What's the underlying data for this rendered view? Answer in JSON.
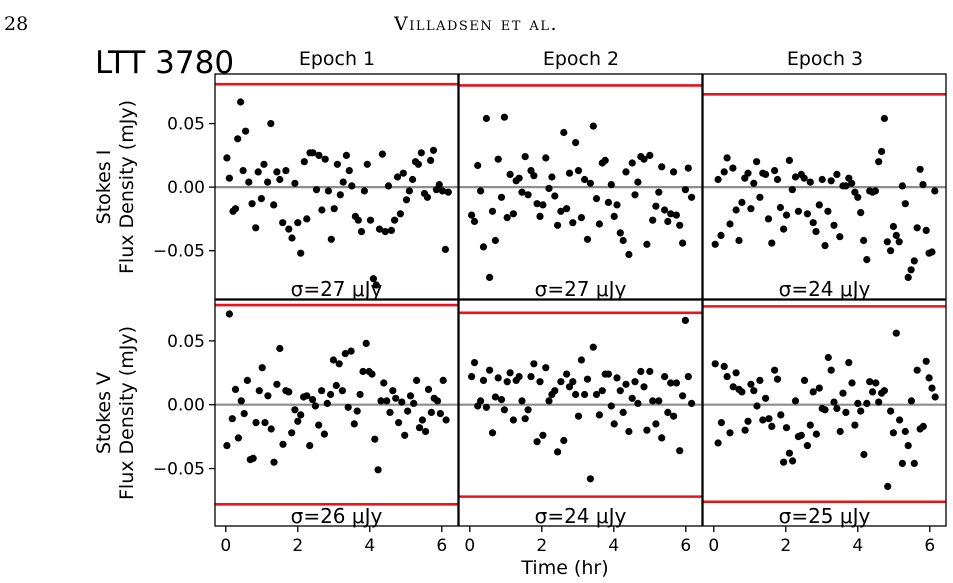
{
  "page": {
    "number": "28",
    "header": "Villadsen et al."
  },
  "figure": {
    "target": "LTT 3780",
    "epochs": [
      "Epoch 1",
      "Epoch 2",
      "Epoch 3"
    ],
    "row_labels": [
      [
        "Stokes I",
        "Flux Density (mJy)"
      ],
      [
        "Stokes V",
        "Flux Density (mJy)"
      ]
    ],
    "xlabel": "Time (hr)",
    "y_tick_labels": [
      "0.05",
      "0.00",
      "−0.05"
    ],
    "x_tick_labels": [
      "0",
      "2",
      "4",
      "6"
    ]
  },
  "colors": {
    "points": "#000000",
    "threshold": "#e8141c",
    "zero_line": "#8c8c8c"
  },
  "chart_data": [
    {
      "type": "scatter",
      "row": "Stokes I",
      "epoch": "Epoch 1",
      "sigma_label": "σ=27 μJy",
      "xlim": [
        -0.3,
        6.45
      ],
      "ylim": [
        -0.088,
        0.089
      ],
      "threshold_lines": [
        0.081
      ],
      "x": [
        0.03,
        0.1,
        0.2,
        0.27,
        0.33,
        0.41,
        0.48,
        0.55,
        0.64,
        0.73,
        0.83,
        0.9,
        0.99,
        1.06,
        1.16,
        1.25,
        1.33,
        1.42,
        1.5,
        1.58,
        1.67,
        1.75,
        1.84,
        1.92,
        2.0,
        2.08,
        2.18,
        2.25,
        2.34,
        2.42,
        2.52,
        2.59,
        2.67,
        2.76,
        2.85,
        2.93,
        3.01,
        3.1,
        3.18,
        3.26,
        3.35,
        3.43,
        3.5,
        3.6,
        3.68,
        3.77,
        3.85,
        3.93,
        4.02,
        4.1,
        4.18,
        4.27,
        4.35,
        4.43,
        4.52,
        4.6,
        4.69,
        4.77,
        4.85,
        4.93,
        5.02,
        5.1,
        5.19,
        5.27,
        5.35,
        5.43,
        5.52,
        5.6,
        5.69,
        5.77,
        5.85,
        5.93,
        6.02,
        6.1,
        6.18
      ],
      "y": [
        0.023,
        0.007,
        -0.019,
        -0.017,
        0.038,
        0.067,
        0.013,
        0.044,
        0.004,
        -0.013,
        -0.032,
        0.012,
        -0.009,
        0.018,
        0.004,
        0.05,
        -0.014,
        0.012,
        0.006,
        -0.028,
        0.013,
        -0.033,
        -0.04,
        0.003,
        -0.028,
        -0.052,
        0.02,
        -0.025,
        0.027,
        0.027,
        -0.002,
        0.025,
        -0.018,
        0.022,
        -0.003,
        -0.041,
        -0.017,
        0.018,
        -0.006,
        0.004,
        0.025,
        0.013,
        0.001,
        -0.023,
        -0.026,
        -0.035,
        -0.003,
        0.018,
        -0.026,
        -0.072,
        -0.077,
        -0.033,
        0.026,
        -0.035,
        0.001,
        -0.034,
        -0.026,
        0.008,
        -0.021,
        0.011,
        -0.01,
        -0.003,
        0.006,
        0.02,
        0.018,
        0.027,
        -0.005,
        -0.008,
        0.021,
        0.029,
        -0.002,
        0.002,
        -0.003,
        -0.049,
        -0.004
      ]
    },
    {
      "type": "scatter",
      "row": "Stokes I",
      "epoch": "Epoch 2",
      "sigma_label": "σ=27 μJy",
      "xlim": [
        -0.3,
        6.45
      ],
      "ylim": [
        -0.088,
        0.089
      ],
      "threshold_lines": [
        0.08
      ],
      "x": [
        0.05,
        0.13,
        0.22,
        0.3,
        0.38,
        0.46,
        0.55,
        0.63,
        0.71,
        0.79,
        0.88,
        0.96,
        1.04,
        1.12,
        1.21,
        1.29,
        1.37,
        1.45,
        1.54,
        1.62,
        1.7,
        1.78,
        1.87,
        1.95,
        2.03,
        2.11,
        2.2,
        2.28,
        2.36,
        2.44,
        2.53,
        2.61,
        2.69,
        2.77,
        2.86,
        2.94,
        3.02,
        3.1,
        3.19,
        3.27,
        3.35,
        3.43,
        3.52,
        3.6,
        3.68,
        3.76,
        3.85,
        3.93,
        4.01,
        4.09,
        4.18,
        4.26,
        4.34,
        4.42,
        4.51,
        4.59,
        4.67,
        4.75,
        4.84,
        4.92,
        5.0,
        5.08,
        5.17,
        5.25,
        5.33,
        5.41,
        5.5,
        5.58,
        5.66,
        5.74,
        5.83,
        5.91,
        5.99,
        6.07,
        6.16
      ],
      "y": [
        -0.022,
        -0.027,
        0.017,
        -0.003,
        -0.047,
        0.054,
        -0.071,
        -0.019,
        -0.042,
        0.022,
        -0.008,
        0.055,
        -0.024,
        0.01,
        -0.021,
        0.005,
        0.007,
        -0.004,
        0.024,
        -0.006,
        0.013,
        0.009,
        -0.013,
        -0.023,
        -0.014,
        0.023,
        -0.001,
        0.008,
        -0.007,
        -0.03,
        -0.019,
        0.043,
        -0.017,
        0.011,
        -0.028,
        0.035,
        0.013,
        -0.024,
        0.006,
        -0.041,
        0.003,
        0.048,
        -0.009,
        -0.029,
        0.019,
        0.021,
        -0.012,
        0.002,
        -0.023,
        -0.014,
        -0.036,
        -0.042,
        0.012,
        -0.053,
        0.019,
        -0.006,
        0.004,
        0.024,
        0.022,
        -0.045,
        0.025,
        -0.026,
        -0.015,
        -0.004,
        0.016,
        -0.018,
        -0.027,
        -0.021,
        0.012,
        -0.022,
        -0.03,
        -0.044,
        -0.002,
        0.015,
        -0.008
      ]
    },
    {
      "type": "scatter",
      "row": "Stokes I",
      "epoch": "Epoch 3",
      "sigma_label": "σ=24 μJy",
      "xlim": [
        -0.3,
        6.45
      ],
      "ylim": [
        -0.088,
        0.089
      ],
      "threshold_lines": [
        0.073
      ],
      "x": [
        0.04,
        0.12,
        0.2,
        0.29,
        0.37,
        0.45,
        0.53,
        0.62,
        0.7,
        0.78,
        0.86,
        0.95,
        1.03,
        1.11,
        1.19,
        1.28,
        1.36,
        1.44,
        1.52,
        1.61,
        1.69,
        1.77,
        1.85,
        1.94,
        2.02,
        2.1,
        2.18,
        2.27,
        2.35,
        2.43,
        2.51,
        2.6,
        2.68,
        2.76,
        2.84,
        2.93,
        3.01,
        3.09,
        3.17,
        3.26,
        3.34,
        3.42,
        3.5,
        3.59,
        3.67,
        3.75,
        3.83,
        3.92,
        4.0,
        4.08,
        4.16,
        4.25,
        4.33,
        4.41,
        4.49,
        4.58,
        4.66,
        4.74,
        4.82,
        4.91,
        4.99,
        5.07,
        5.15,
        5.24,
        5.32,
        5.4,
        5.48,
        5.57,
        5.65,
        5.73,
        5.81,
        5.9,
        5.98,
        6.06,
        6.14
      ],
      "y": [
        -0.045,
        0.006,
        -0.038,
        0.012,
        0.023,
        -0.029,
        0.015,
        -0.018,
        -0.042,
        -0.012,
        0.007,
        0.011,
        -0.017,
        0.003,
        0.02,
        -0.008,
        0.011,
        0.01,
        -0.025,
        -0.044,
        0.013,
        0.006,
        -0.016,
        -0.033,
        -0.022,
        0.021,
        -0.002,
        0.008,
        -0.019,
        0.01,
        0.007,
        -0.021,
        0.004,
        -0.028,
        -0.035,
        -0.014,
        0.006,
        -0.046,
        -0.019,
        0.005,
        -0.03,
        0.01,
        -0.039,
        0.001,
        0.001,
        0.007,
        0.003,
        -0.004,
        -0.008,
        -0.02,
        -0.042,
        -0.057,
        -0.003,
        -0.004,
        -0.003,
        0.02,
        0.028,
        0.054,
        -0.043,
        -0.05,
        -0.031,
        -0.038,
        -0.043,
        0.001,
        -0.013,
        -0.071,
        -0.065,
        -0.058,
        -0.032,
        0.014,
        0.002,
        -0.034,
        -0.052,
        -0.051,
        -0.003
      ]
    },
    {
      "type": "scatter",
      "row": "Stokes V",
      "epoch": "Epoch 1",
      "sigma_label": "σ=26 μJy",
      "xlim": [
        -0.3,
        6.45
      ],
      "ylim": [
        -0.095,
        0.082
      ],
      "threshold_lines": [
        0.078,
        -0.078
      ],
      "x": [
        0.03,
        0.1,
        0.18,
        0.27,
        0.35,
        0.43,
        0.51,
        0.6,
        0.68,
        0.76,
        0.84,
        0.93,
        1.01,
        1.09,
        1.17,
        1.26,
        1.34,
        1.42,
        1.5,
        1.59,
        1.67,
        1.75,
        1.83,
        1.92,
        2.0,
        2.08,
        2.16,
        2.25,
        2.33,
        2.41,
        2.49,
        2.58,
        2.66,
        2.74,
        2.82,
        2.91,
        2.99,
        3.07,
        3.15,
        3.24,
        3.32,
        3.4,
        3.48,
        3.57,
        3.65,
        3.73,
        3.81,
        3.9,
        3.98,
        4.06,
        4.14,
        4.23,
        4.31,
        4.39,
        4.47,
        4.56,
        4.64,
        4.72,
        4.8,
        4.89,
        4.97,
        5.05,
        5.13,
        5.22,
        5.3,
        5.38,
        5.46,
        5.55,
        5.63,
        5.71,
        5.79,
        5.88,
        5.96,
        6.04,
        6.12
      ],
      "y": [
        -0.032,
        0.071,
        -0.011,
        0.012,
        -0.026,
        0.003,
        -0.007,
        0.019,
        -0.043,
        -0.042,
        -0.014,
        0.011,
        0.029,
        -0.014,
        0.007,
        -0.019,
        -0.045,
        0.016,
        0.044,
        -0.031,
        0.011,
        0.01,
        -0.022,
        -0.004,
        -0.013,
        -0.008,
        0.006,
        0.007,
        -0.032,
        0.004,
        -0.001,
        -0.016,
        0.011,
        -0.023,
        0.001,
        0.008,
        0.035,
        0.015,
        0.032,
        0.011,
        0.04,
        -0.002,
        0.042,
        -0.015,
        -0.005,
        0.008,
        0.026,
        0.048,
        0.026,
        0.024,
        -0.027,
        -0.051,
        0.003,
        0.017,
        0.003,
        -0.006,
        0.011,
        0.005,
        -0.014,
        0.002,
        -0.024,
        -0.005,
        0.007,
        0.001,
        0.019,
        -0.018,
        -0.012,
        -0.021,
        0.012,
        -0.006,
        0.005,
        0.003,
        -0.007,
        0.019,
        -0.012
      ]
    },
    {
      "type": "scatter",
      "row": "Stokes V",
      "epoch": "Epoch 2",
      "sigma_label": "σ=24 μJy",
      "xlim": [
        -0.3,
        6.45
      ],
      "ylim": [
        -0.095,
        0.082
      ],
      "threshold_lines": [
        0.072,
        -0.072
      ],
      "x": [
        0.05,
        0.13,
        0.22,
        0.3,
        0.38,
        0.46,
        0.55,
        0.63,
        0.71,
        0.79,
        0.88,
        0.96,
        1.04,
        1.12,
        1.21,
        1.29,
        1.37,
        1.45,
        1.54,
        1.62,
        1.7,
        1.78,
        1.87,
        1.95,
        2.03,
        2.11,
        2.2,
        2.28,
        2.36,
        2.44,
        2.53,
        2.61,
        2.69,
        2.77,
        2.86,
        2.94,
        3.02,
        3.1,
        3.19,
        3.27,
        3.35,
        3.43,
        3.52,
        3.6,
        3.68,
        3.76,
        3.85,
        3.93,
        4.01,
        4.09,
        4.18,
        4.26,
        4.34,
        4.42,
        4.51,
        4.59,
        4.67,
        4.75,
        4.84,
        4.92,
        5.0,
        5.08,
        5.17,
        5.25,
        5.33,
        5.41,
        5.5,
        5.58,
        5.66,
        5.74,
        5.83,
        5.91,
        5.99,
        6.07,
        6.16
      ],
      "y": [
        0.022,
        0.033,
        -0.001,
        0.003,
        0.019,
        -0.002,
        0.027,
        -0.022,
        0.006,
        0.021,
        0.004,
        -0.004,
        0.018,
        0.025,
        -0.012,
        0.019,
        0.022,
        0.003,
        -0.011,
        -0.004,
        0.022,
        0.032,
        -0.029,
        0.018,
        -0.024,
        0.029,
        0.003,
        0.008,
        0.011,
        -0.037,
        0.018,
        -0.028,
        0.024,
        0.014,
        0.018,
        0.008,
        -0.009,
        0.035,
        0.008,
        0.02,
        -0.058,
        0.045,
        0.008,
        -0.008,
        0.011,
        0.024,
        0.024,
        -0.001,
        -0.015,
        0.021,
        0.011,
        -0.006,
        0.016,
        -0.021,
        0.005,
        0.018,
        0.001,
        0.026,
        0.014,
        -0.02,
        0.026,
        0.003,
        -0.015,
        0.003,
        -0.026,
        0.022,
        -0.006,
        0.017,
        -0.009,
        0.017,
        -0.036,
        0.007,
        0.066,
        0.022,
        0.001
      ]
    },
    {
      "type": "scatter",
      "row": "Stokes V",
      "epoch": "Epoch 3",
      "sigma_label": "σ=25 μJy",
      "xlim": [
        -0.3,
        6.45
      ],
      "ylim": [
        -0.095,
        0.082
      ],
      "threshold_lines": [
        0.077,
        -0.076
      ],
      "x": [
        0.04,
        0.12,
        0.21,
        0.29,
        0.37,
        0.45,
        0.54,
        0.62,
        0.7,
        0.78,
        0.87,
        0.95,
        1.03,
        1.11,
        1.2,
        1.28,
        1.36,
        1.44,
        1.53,
        1.61,
        1.69,
        1.77,
        1.86,
        1.94,
        2.02,
        2.1,
        2.19,
        2.27,
        2.35,
        2.43,
        2.52,
        2.6,
        2.68,
        2.76,
        2.85,
        2.93,
        3.01,
        3.09,
        3.18,
        3.26,
        3.34,
        3.42,
        3.51,
        3.59,
        3.67,
        3.75,
        3.84,
        3.92,
        4.0,
        4.08,
        4.17,
        4.25,
        4.33,
        4.41,
        4.5,
        4.58,
        4.66,
        4.74,
        4.83,
        4.91,
        4.99,
        5.07,
        5.16,
        5.24,
        5.32,
        5.4,
        5.49,
        5.57,
        5.65,
        5.73,
        5.82,
        5.9,
        5.98,
        6.06,
        6.15
      ],
      "y": [
        0.032,
        -0.03,
        -0.014,
        0.03,
        0.022,
        -0.022,
        0.014,
        0.025,
        0.012,
        0.01,
        -0.02,
        -0.013,
        0.016,
        0.011,
        -0.001,
        0.019,
        -0.012,
        0.005,
        -0.011,
        -0.017,
        0.027,
        0.02,
        -0.008,
        -0.045,
        -0.018,
        -0.038,
        -0.044,
        0.003,
        -0.025,
        -0.024,
        0.019,
        -0.032,
        -0.016,
        0.01,
        -0.023,
        0.013,
        -0.003,
        -0.004,
        0.037,
        0.027,
        0.002,
        -0.003,
        -0.021,
        0.009,
        -0.006,
        0.033,
        0.017,
        -0.016,
        0.001,
        -0.005,
        -0.039,
        0.001,
        0.018,
        0.01,
        0.017,
        0.002,
        0.009,
        0.011,
        -0.064,
        -0.005,
        -0.022,
        0.056,
        -0.012,
        -0.046,
        -0.021,
        -0.032,
        0.003,
        -0.046,
        0.027,
        -0.019,
        -0.017,
        0.034,
        0.021,
        0.013,
        0.006
      ]
    }
  ]
}
